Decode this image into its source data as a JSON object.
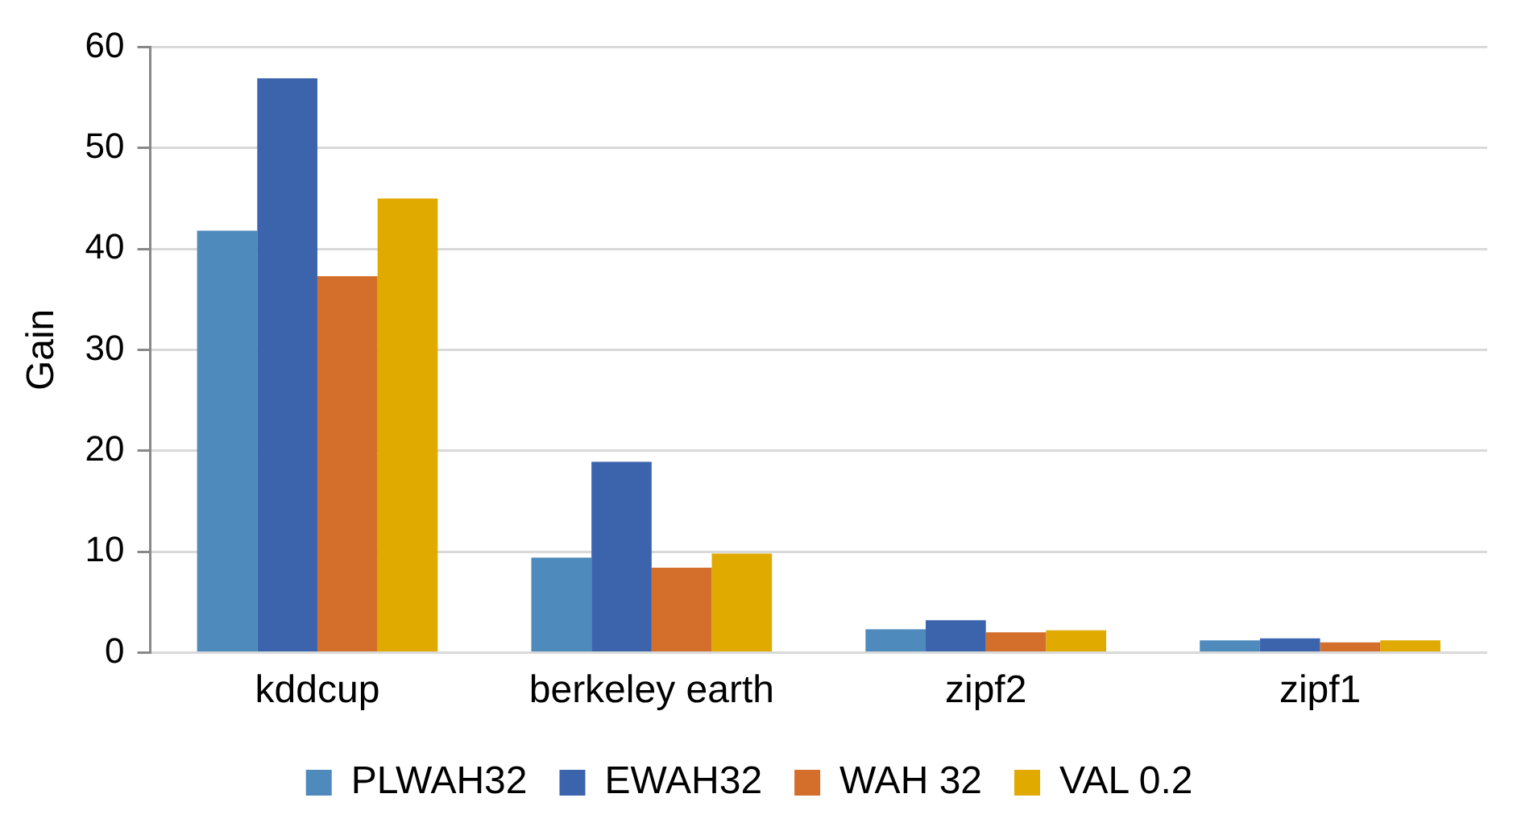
{
  "chart_data": {
    "type": "bar",
    "ylabel": "Gain",
    "categories": [
      "kddcup",
      "berkeley earth",
      "zipf2",
      "zipf1"
    ],
    "series": [
      {
        "name": "PLWAH32",
        "color": "#4f8abc",
        "values": [
          41.8,
          9.4,
          2.3,
          1.2
        ]
      },
      {
        "name": "EWAH32",
        "color": "#3c64ac",
        "values": [
          56.9,
          18.9,
          3.2,
          1.4
        ]
      },
      {
        "name": "WAH 32",
        "color": "#d36f2b",
        "values": [
          37.3,
          8.4,
          2.0,
          1.0
        ]
      },
      {
        "name": "VAL 0.2",
        "color": "#e0aa00",
        "values": [
          45,
          9.8,
          2.2,
          1.2
        ]
      }
    ],
    "ylim": [
      0,
      60
    ],
    "yticks": [
      0,
      10,
      20,
      30,
      40,
      50,
      60
    ],
    "grid": "y",
    "legend": "bottom"
  }
}
